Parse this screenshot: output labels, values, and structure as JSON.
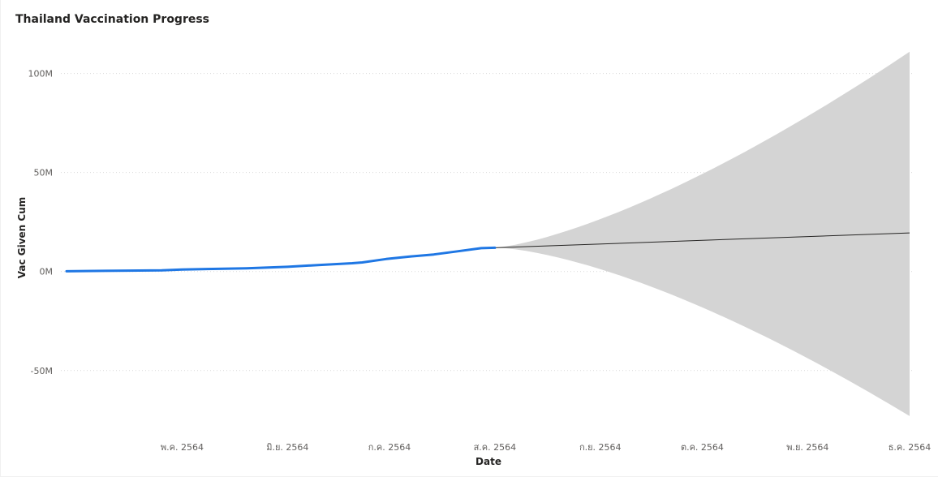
{
  "chart_data": {
    "type": "line",
    "title": "Thailand Vaccination Progress",
    "xlabel": "Date",
    "ylabel": "Vac Given Cum",
    "ylim": [
      -80000000,
      115000000
    ],
    "y_ticks": [
      {
        "value": 100000000,
        "label": "100M"
      },
      {
        "value": 50000000,
        "label": "50M"
      },
      {
        "value": 0,
        "label": "0M"
      },
      {
        "value": -50000000,
        "label": "-50M"
      }
    ],
    "x_range": [
      "2021-03-28",
      "2021-12-01"
    ],
    "x_ticks": [
      {
        "date": "2021-05-01",
        "label": "พ.ค. 2564"
      },
      {
        "date": "2021-06-01",
        "label": "มิ.ย. 2564"
      },
      {
        "date": "2021-07-01",
        "label": "ก.ค. 2564"
      },
      {
        "date": "2021-08-01",
        "label": "ส.ค. 2564"
      },
      {
        "date": "2021-09-01",
        "label": "ก.ย. 2564"
      },
      {
        "date": "2021-10-01",
        "label": "ต.ค. 2564"
      },
      {
        "date": "2021-11-01",
        "label": "พ.ย. 2564"
      },
      {
        "date": "2021-12-01",
        "label": "ธ.ค. 2564"
      }
    ],
    "grid": true,
    "series": [
      {
        "color": "#1f77e4",
        "points": [
          [
            "2021-03-28",
            150000
          ],
          [
            "2021-04-05",
            300000
          ],
          [
            "2021-04-15",
            450000
          ],
          [
            "2021-04-25",
            600000
          ],
          [
            "2021-05-01",
            1000000
          ],
          [
            "2021-05-10",
            1300000
          ],
          [
            "2021-05-20",
            1600000
          ],
          [
            "2021-06-01",
            2400000
          ],
          [
            "2021-06-10",
            3300000
          ],
          [
            "2021-06-20",
            4200000
          ],
          [
            "2021-06-23",
            4600000
          ],
          [
            "2021-06-30",
            6300000
          ],
          [
            "2021-07-07",
            7600000
          ],
          [
            "2021-07-14",
            8600000
          ],
          [
            "2021-07-21",
            10200000
          ],
          [
            "2021-07-28",
            11800000
          ],
          [
            "2021-08-01",
            12000000
          ]
        ]
      }
    ],
    "forecast": {
      "color": "#252423",
      "band_color": "#d4d4d4",
      "start": [
        "2021-08-01",
        12000000
      ],
      "end": [
        "2021-12-01",
        19500000
      ],
      "upper_end": 111000000,
      "lower_end": -73000000
    }
  }
}
